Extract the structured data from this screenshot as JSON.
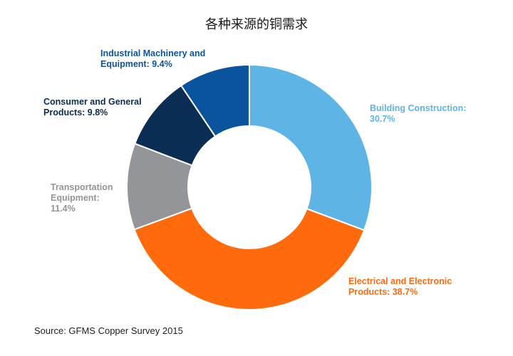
{
  "chart_data": {
    "type": "pie",
    "title": "各种来源的铜需求",
    "categories": [
      "Building Construction:",
      "Electrical and Electronic Products:",
      "Transportation Equipment:",
      "Consumer and General Products:",
      "Industrial Machinery and Equipment:"
    ],
    "values": [
      30.7,
      38.7,
      11.4,
      9.8,
      9.4
    ],
    "value_labels": [
      "30.7%",
      "38.7%",
      "11.4%",
      "9.8%",
      "9.4%"
    ],
    "colors": [
      "#5db4e5",
      "#ff6a0d",
      "#939598",
      "#0b2d54",
      "#0a549e"
    ],
    "donut": true,
    "label_lines": {
      "building": [
        "Building Construction:",
        "30.7%"
      ],
      "electrical": [
        "Electrical and Electronic",
        "Products: 38.7%"
      ],
      "transport": [
        "Transportation",
        "Equipment:",
        "11.4%"
      ],
      "consumer": [
        "Consumer and General",
        "Products: 9.8%"
      ],
      "industrial": [
        "Industrial Machinery and",
        "Equipment: 9.4%"
      ]
    }
  },
  "source": "Source: GFMS Copper Survey 2015"
}
